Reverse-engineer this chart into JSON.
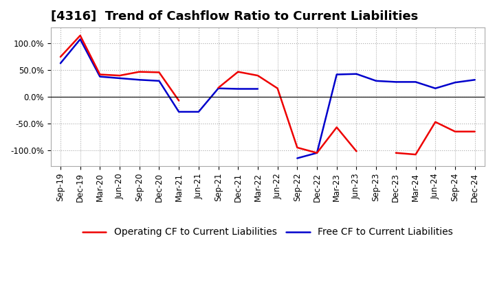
{
  "title": "[4316]  Trend of Cashflow Ratio to Current Liabilities",
  "x_labels": [
    "Sep-19",
    "Dec-19",
    "Mar-20",
    "Jun-20",
    "Sep-20",
    "Dec-20",
    "Mar-21",
    "Jun-21",
    "Sep-21",
    "Dec-21",
    "Mar-22",
    "Jun-22",
    "Sep-22",
    "Dec-22",
    "Mar-23",
    "Jun-23",
    "Sep-23",
    "Dec-23",
    "Mar-24",
    "Jun-24",
    "Sep-24",
    "Dec-24"
  ],
  "operating_cf": [
    75,
    115,
    42,
    40,
    47,
    46,
    -7,
    null,
    17,
    47,
    40,
    16,
    -95,
    -105,
    -57,
    -102,
    null,
    -105,
    -108,
    -47,
    -65,
    -65
  ],
  "free_cf": [
    63,
    108,
    38,
    35,
    32,
    30,
    -28,
    -28,
    16,
    15,
    15,
    null,
    -115,
    -105,
    42,
    43,
    30,
    28,
    28,
    16,
    27,
    32
  ],
  "operating_cf_color": "#ee0000",
  "free_cf_color": "#0000cc",
  "ylim": [
    -130,
    130
  ],
  "yticks": [
    -100,
    -50,
    0,
    50,
    100
  ],
  "ytick_labels": [
    "-100.0%",
    "-50.0%",
    "0.0%",
    "50.0%",
    "100.0%"
  ],
  "background_color": "#ffffff",
  "plot_bg_color": "#ffffff",
  "grid_color": "#aaaaaa",
  "legend_op": "Operating CF to Current Liabilities",
  "legend_free": "Free CF to Current Liabilities",
  "title_fontsize": 13,
  "legend_fontsize": 10,
  "tick_fontsize": 8.5
}
